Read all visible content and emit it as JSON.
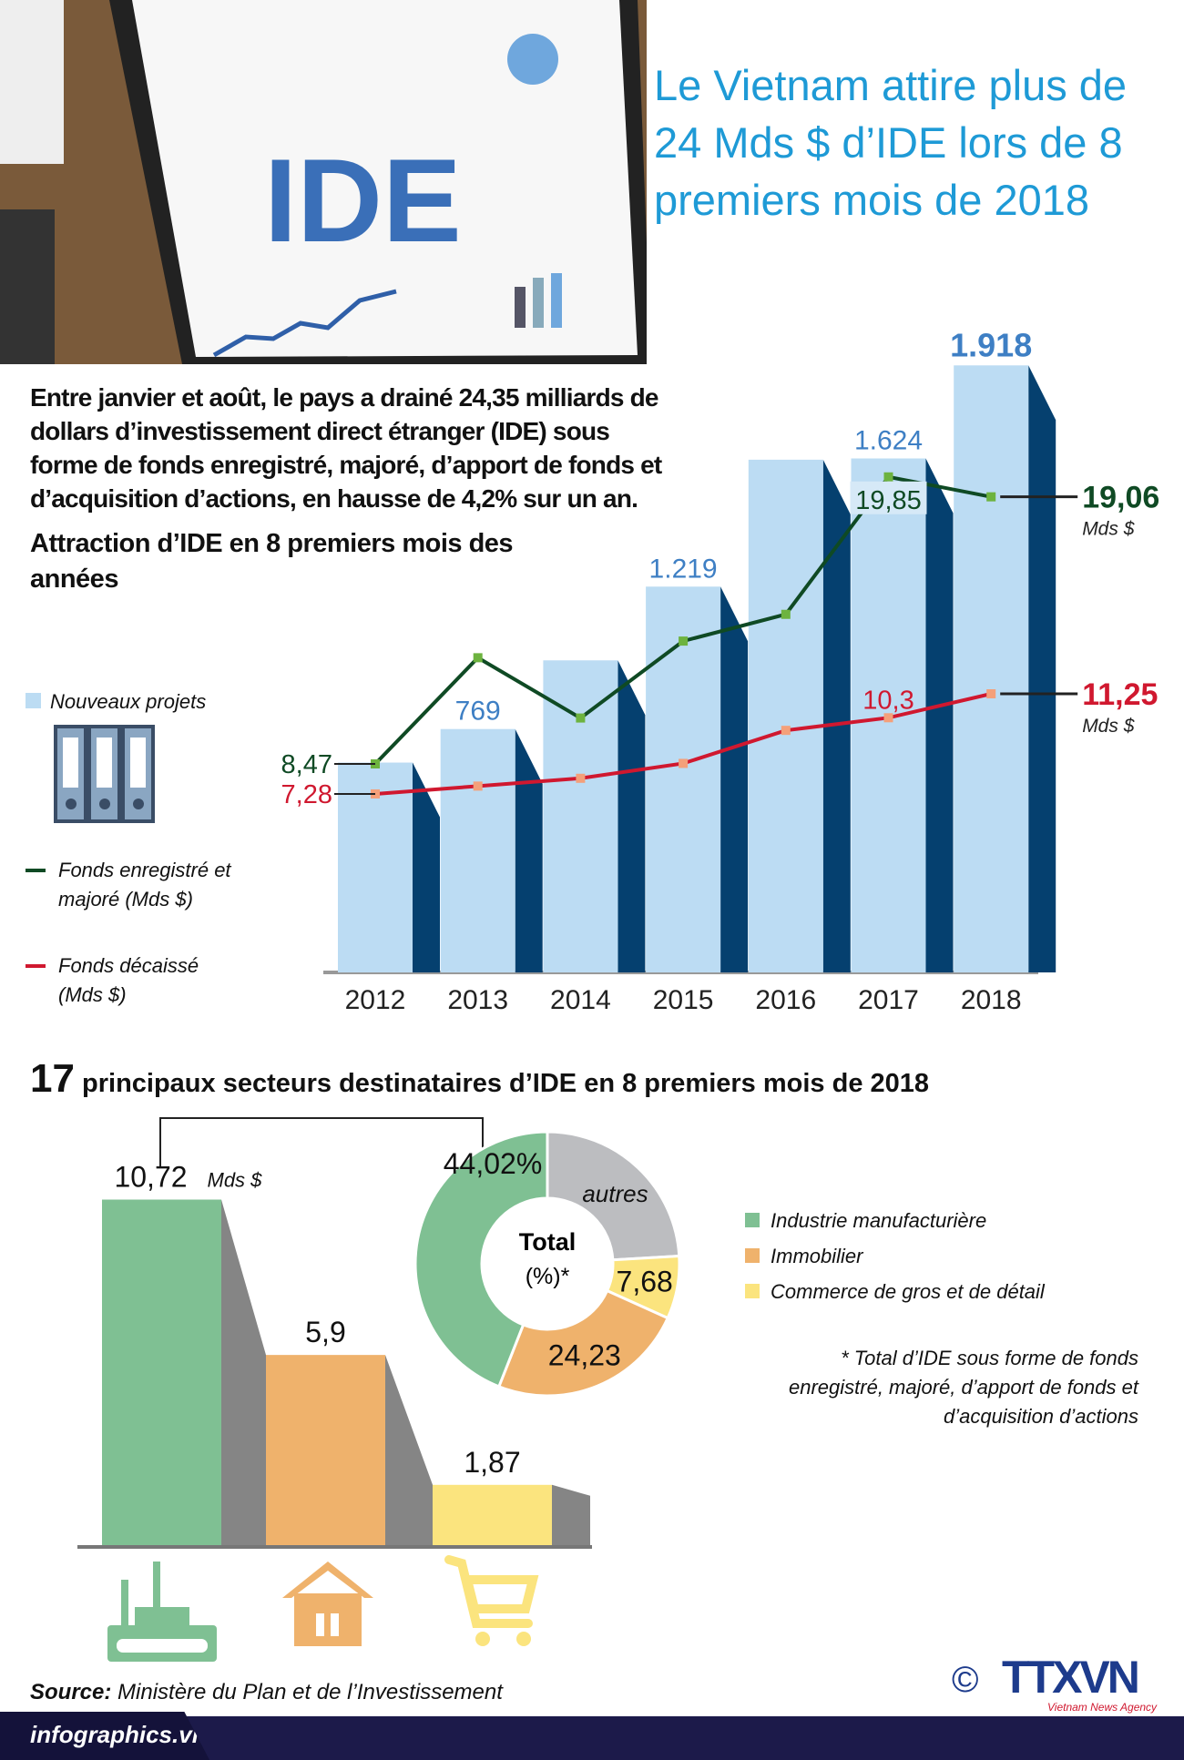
{
  "title": "Le Vietnam attire plus de 24 Mds $ d’IDE lors de 8 premiers mois de 2018",
  "header_image": {
    "text": "IDE"
  },
  "intro": "Entre janvier et août, le pays a drainé 24,35 milliards de dollars d’investissement direct étranger (IDE) sous forme de fonds enregistré, majoré, d’apport de fonds et d’acquisition d’actions, en hausse de 4,2% sur un an.",
  "chart_data": [
    {
      "type": "bar+line",
      "title": "Attraction d’IDE en 8 premiers mois des années",
      "categories": [
        "2012",
        "2013",
        "2014",
        "2015",
        "2016",
        "2017",
        "2018"
      ],
      "series": [
        {
          "name": "Nouveaux projets",
          "type": "bar",
          "values": [
            663,
            769,
            986,
            1219,
            1620,
            1624,
            1918
          ],
          "labels": [
            "",
            "769",
            "",
            "1.219",
            "",
            "1.624",
            "1.918"
          ],
          "color": "#bcdcf3"
        },
        {
          "name": "Fonds enregistré et majoré (Mds $)",
          "type": "line",
          "values": [
            8.47,
            12.68,
            10.29,
            13.34,
            14.4,
            19.85,
            19.06
          ],
          "labels": [
            "8,47",
            "",
            "",
            "",
            "",
            "19,85",
            "19,06"
          ],
          "color": "#0f4a24"
        },
        {
          "name": "Fonds décaissé (Mds $)",
          "type": "line",
          "values": [
            7.28,
            7.59,
            7.9,
            8.49,
            9.8,
            10.3,
            11.25
          ],
          "labels": [
            "7,28",
            "",
            "",
            "",
            "",
            "10,3",
            "11,25"
          ],
          "color": "#d0182f"
        }
      ],
      "unit": "Mds $"
    },
    {
      "type": "bar",
      "title": "17 principaux secteurs destinataires d’IDE en 8 premiers mois de 2018",
      "categories": [
        "Industrie manufacturière",
        "Immobilier",
        "Commerce de gros et de détail"
      ],
      "values": [
        10.72,
        5.9,
        1.87
      ],
      "labels": [
        "10,72",
        "5,9",
        "1,87"
      ],
      "unit": "Mds $",
      "colors": [
        "#7fc093",
        "#efb26c",
        "#fbe47e"
      ]
    },
    {
      "type": "pie",
      "center_label": "Total",
      "center_sub": "(%)*",
      "slices": [
        {
          "name": "autres",
          "value": 24.07,
          "label": "autres",
          "color": "#bcbdc0"
        },
        {
          "name": "Commerce de gros et de détail",
          "value": 7.68,
          "label": "7,68",
          "color": "#fbe47e"
        },
        {
          "name": "Immobilier",
          "value": 24.23,
          "label": "24,23",
          "color": "#efb26c"
        },
        {
          "name": "Industrie manufacturière",
          "value": 44.02,
          "label": "44,02%",
          "color": "#7fc093"
        }
      ]
    }
  ],
  "legend1": {
    "bars": "Nouveaux projets",
    "green": "Fonds enregistré et majoré (Mds $)",
    "red": "Fonds décaissé (Mds $)"
  },
  "t2": {
    "num": "17",
    "text": " principaux secteurs destinataires d’IDE en 8 premiers mois de 2018"
  },
  "legend2": [
    "Industrie manufacturière",
    "Immobilier",
    "Commerce de gros et de détail"
  ],
  "note": "* Total d’IDE sous forme de fonds enregistré, majoré, d’apport de fonds et d’acquisition d’actions",
  "source_label": "Source:",
  "source": " Ministère du Plan et de l’Investissement",
  "footer": "infographics.vn",
  "logo": {
    "symbol": "©",
    "name": "TTXVN",
    "sub": "Vietnam News Agency"
  }
}
